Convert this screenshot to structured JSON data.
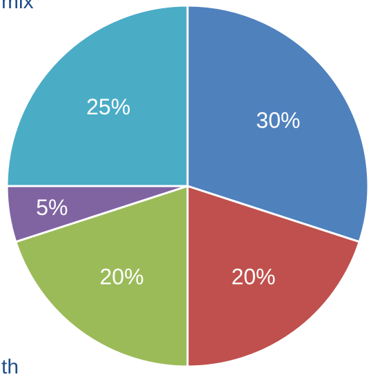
{
  "fragments": {
    "top_left": "mix",
    "bottom_left": "th"
  },
  "chart_data": {
    "type": "pie",
    "start_angle_deg": 0,
    "direction": "clockwise",
    "slices": [
      {
        "value": 30,
        "label": "30%",
        "color": "#4f81bd"
      },
      {
        "value": 20,
        "label": "20%",
        "color": "#c0504d"
      },
      {
        "value": 20,
        "label": "20%",
        "color": "#9bbb59"
      },
      {
        "value": 5,
        "label": "5%",
        "color": "#8064a2"
      },
      {
        "value": 25,
        "label": "25%",
        "color": "#4bacc6"
      }
    ]
  }
}
